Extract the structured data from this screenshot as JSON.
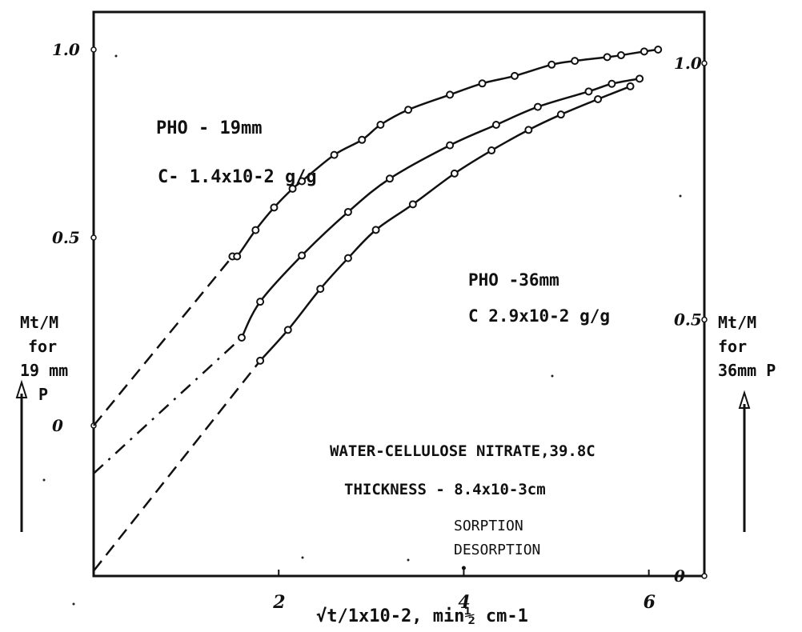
{
  "chart_data": {
    "type": "line",
    "title": "WATER-CELLULOSE NITRATE,39.8C",
    "subtitle": "THICKNESS - 8.4x10-3cm",
    "xlabel": "√t/1x10-2,   min½ cm-1",
    "ylabel_left": [
      "Mt/M",
      "for",
      "19 mm",
      "P"
    ],
    "ylabel_right": [
      "Mt/M",
      "for",
      "36mm P"
    ],
    "x_ticks": [
      "2",
      "4",
      "6"
    ],
    "y_left_ticks": [
      "0",
      "0.5",
      "1.0"
    ],
    "y_right_ticks": [
      "0",
      "0.5",
      "1.0"
    ],
    "xlim": [
      0,
      6.6
    ],
    "ylim_left": [
      -0.4,
      1.1
    ],
    "ylim_right": [
      0,
      1.1
    ],
    "legend": [
      "SORPTION",
      "DESORPTION"
    ],
    "annotations": [
      {
        "line1": "PHO - 19mm",
        "line2": "C- 1.4x10-2 g/g"
      },
      {
        "line1": "PHO -36mm",
        "line2": "C 2.9x10-2 g/g"
      }
    ],
    "series": [
      {
        "axis": "left",
        "values": [
          [
            1.5,
            0.45
          ],
          [
            1.55,
            0.45
          ],
          [
            1.75,
            0.52
          ],
          [
            1.95,
            0.58
          ],
          [
            2.15,
            0.63
          ],
          [
            2.25,
            0.65
          ],
          [
            2.6,
            0.72
          ],
          [
            2.9,
            0.76
          ],
          [
            3.1,
            0.8
          ],
          [
            3.4,
            0.84
          ],
          [
            3.85,
            0.88
          ],
          [
            4.2,
            0.91
          ],
          [
            4.55,
            0.93
          ],
          [
            4.95,
            0.96
          ],
          [
            5.2,
            0.97
          ],
          [
            5.55,
            0.98
          ],
          [
            5.7,
            0.985
          ],
          [
            5.95,
            0.995
          ],
          [
            6.1,
            1.0
          ]
        ],
        "extrapolation": [
          [
            0,
            0.0
          ],
          [
            1.5,
            0.45
          ]
        ]
      },
      {
        "axis": "right",
        "values": [
          [
            1.6,
            0.465
          ],
          [
            1.8,
            0.535
          ],
          [
            2.25,
            0.625
          ],
          [
            2.75,
            0.71
          ],
          [
            3.2,
            0.775
          ],
          [
            3.85,
            0.84
          ],
          [
            4.35,
            0.88
          ],
          [
            4.8,
            0.915
          ],
          [
            5.35,
            0.945
          ],
          [
            5.6,
            0.96
          ],
          [
            5.9,
            0.97
          ]
        ],
        "extrapolation": [
          [
            0,
            0.2
          ],
          [
            1.6,
            0.465
          ]
        ]
      },
      {
        "axis": "right",
        "values": [
          [
            1.8,
            0.42
          ],
          [
            2.1,
            0.48
          ],
          [
            2.45,
            0.56
          ],
          [
            2.75,
            0.62
          ],
          [
            3.05,
            0.675
          ],
          [
            3.45,
            0.725
          ],
          [
            3.9,
            0.785
          ],
          [
            4.3,
            0.83
          ],
          [
            4.7,
            0.87
          ],
          [
            5.05,
            0.9
          ],
          [
            5.45,
            0.93
          ],
          [
            5.8,
            0.955
          ]
        ],
        "extrapolation": [
          [
            0,
            0.01
          ],
          [
            1.8,
            0.42
          ]
        ]
      }
    ]
  }
}
